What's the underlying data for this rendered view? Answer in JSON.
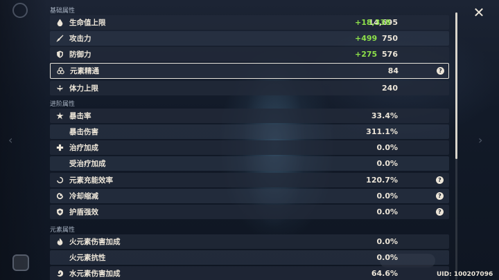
{
  "sections": {
    "basic": "基础属性",
    "advanced": "进阶属性",
    "elemental": "元素属性"
  },
  "stats": [
    {
      "label": "生命值上限",
      "value": "14,695",
      "bonus": "+18,338",
      "icon": "hp-drop-icon"
    },
    {
      "label": "攻击力",
      "value": "750",
      "bonus": "+499",
      "icon": "sword-icon"
    },
    {
      "label": "防御力",
      "value": "576",
      "bonus": "+275",
      "icon": "shield-icon"
    },
    {
      "label": "元素精通",
      "value": "84",
      "icon": "elemental-mastery-icon",
      "help": "?"
    },
    {
      "label": "体力上限",
      "value": "240",
      "icon": "stamina-icon"
    },
    {
      "label": "暴击率",
      "value": "33.4%",
      "icon": "crit-star-icon"
    },
    {
      "label": "暴击伤害",
      "value": "311.1%"
    },
    {
      "label": "治疗加成",
      "value": "0.0%",
      "icon": "healing-cross-icon"
    },
    {
      "label": "受治疗加成",
      "value": "0.0%"
    },
    {
      "label": "元素充能效率",
      "value": "120.7%",
      "icon": "energy-recharge-icon",
      "help": "?"
    },
    {
      "label": "冷却缩减",
      "value": "0.0%",
      "icon": "cooldown-icon",
      "help": "?"
    },
    {
      "label": "护盾强效",
      "value": "0.0%",
      "icon": "shield-strength-icon",
      "help": "?"
    },
    {
      "label": "火元素伤害加成",
      "value": "0.0%",
      "icon": "pyro-icon"
    },
    {
      "label": "火元素抗性",
      "value": "0.0%"
    },
    {
      "label": "水元素伤害加成",
      "value": "64.6%",
      "icon": "hydro-icon"
    }
  ],
  "footer": {
    "uid": "UID: 100207096"
  },
  "close_label": "✕",
  "colors": {
    "bonus_green": "#8ee14a",
    "text": "#ece5d8",
    "row_dark": "#222a3a"
  }
}
